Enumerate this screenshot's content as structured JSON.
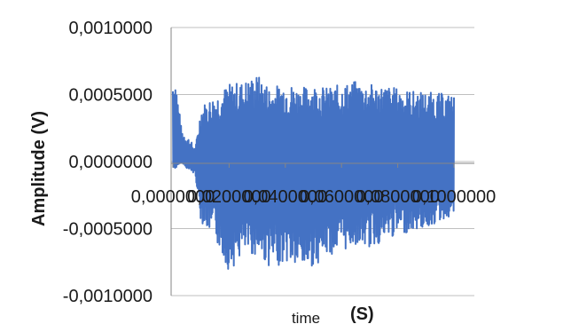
{
  "chart_data": {
    "type": "line",
    "title": "",
    "xlabel": "time",
    "xunit_label": "(S)",
    "ylabel": "Amplitude (V)",
    "ylim": [
      -0.001,
      0.001
    ],
    "y_ticks": [
      0.001,
      0.0005,
      0.0,
      -0.0005,
      -0.001
    ],
    "y_tick_labels": [
      "0,0010000",
      "0,0005000",
      "0,0000000",
      "-0,0005000",
      "-0,0010000"
    ],
    "xlim": [
      0.0,
      0.1
    ],
    "x_tick_labels": [
      "0,0000000",
      "0,0200000",
      "0,0400000",
      "0,0600000",
      "0,0800000",
      "0,1000000"
    ],
    "grid": true,
    "legend": "none",
    "series": [
      {
        "color": "#4472C4",
        "envelope_x": [
          0.0,
          0.001,
          0.003,
          0.005,
          0.008,
          0.01,
          0.015,
          0.02,
          0.025,
          0.03,
          0.035,
          0.04,
          0.045,
          0.05,
          0.055,
          0.06,
          0.065,
          0.07,
          0.075,
          0.08,
          0.085,
          0.09,
          0.095,
          0.1
        ],
        "envelope_max": [
          0.00068,
          0.00065,
          0.00025,
          0.0002,
          0.0001,
          0.00042,
          0.0005,
          0.00058,
          0.0006,
          0.00065,
          0.00055,
          0.0006,
          0.00055,
          0.00058,
          0.00055,
          0.00058,
          0.0006,
          0.00058,
          0.00057,
          0.00055,
          0.00053,
          0.00052,
          0.00051,
          0.0005
        ],
        "envelope_min": [
          -5e-05,
          -5e-05,
          0.0,
          -5e-05,
          -0.0001,
          -0.00045,
          -0.00058,
          -0.00082,
          -0.0007,
          -0.0007,
          -0.0008,
          -0.00075,
          -0.00082,
          -0.00078,
          -0.0007,
          -0.00068,
          -0.00062,
          -0.00065,
          -0.0006,
          -0.00055,
          -0.00052,
          -0.0005,
          -0.00045,
          -0.0004
        ]
      }
    ]
  }
}
